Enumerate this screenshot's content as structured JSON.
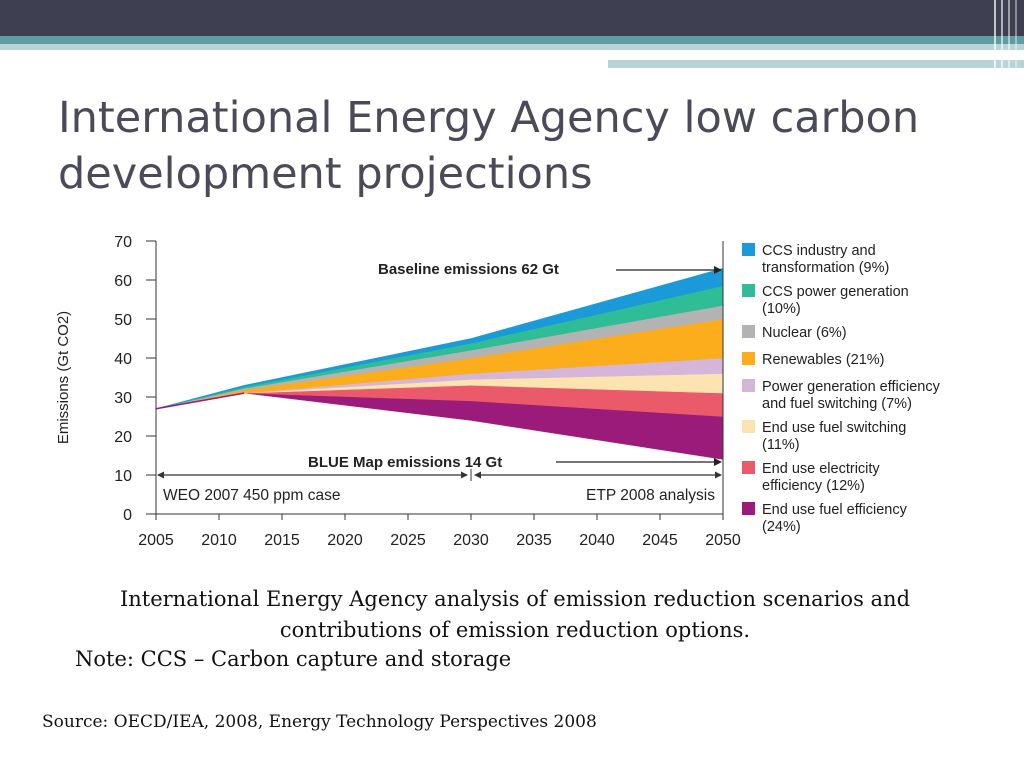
{
  "slide": {
    "title": "International Energy Agency low carbon development projections",
    "caption": "International Energy Agency analysis of emission reduction scenarios and contributions of emission reduction options.",
    "note": "Note: CCS – Carbon capture and storage",
    "source": "Source: OECD/IEA, 2008, Energy Technology Perspectives 2008",
    "colors": {
      "band_dark": "#3e3f51",
      "band_teal": "#5f9ea0",
      "band_light": "#b8d4d6",
      "title": "#4a4a58"
    }
  },
  "chart_data": {
    "type": "area",
    "title": "",
    "xlabel": "",
    "ylabel": "Emissions (Gt CO2)",
    "xlim": [
      2005,
      2050
    ],
    "ylim": [
      0,
      70
    ],
    "x_ticks": [
      2005,
      2010,
      2015,
      2020,
      2025,
      2030,
      2035,
      2040,
      2045,
      2050
    ],
    "y_ticks": [
      0,
      10,
      20,
      30,
      40,
      50,
      60,
      70
    ],
    "x": [
      2005,
      2012,
      2030,
      2050
    ],
    "base": [
      27,
      31,
      24,
      14
    ],
    "series": [
      {
        "name": "End use fuel efficiency (24%)",
        "color": "#9b1b7a",
        "values": [
          0,
          0,
          5,
          11
        ]
      },
      {
        "name": "End use electricity efficiency (12%)",
        "color": "#ea5a6a",
        "values": [
          0,
          0,
          4,
          6
        ]
      },
      {
        "name": "End use fuel switching (11%)",
        "color": "#fde3b0",
        "values": [
          0,
          0,
          1.5,
          5
        ]
      },
      {
        "name": "Power generation efficiency and fuel switching (7%)",
        "color": "#d5b5d9",
        "values": [
          0,
          0,
          1.5,
          4
        ]
      },
      {
        "name": "Renewables (21%)",
        "color": "#fbad1b",
        "values": [
          0,
          0.8,
          4,
          10
        ]
      },
      {
        "name": "Nuclear (6%)",
        "color": "#b3b3b3",
        "values": [
          0,
          0.4,
          2,
          3.5
        ]
      },
      {
        "name": "CCS power generation (10%)",
        "color": "#2ebd96",
        "values": [
          0,
          0.4,
          1.8,
          5
        ]
      },
      {
        "name": "CCS industry and transformation (9%)",
        "color": "#1a9ad8",
        "values": [
          0,
          0.4,
          1.2,
          4.5
        ]
      }
    ],
    "annotations": [
      {
        "text": "Baseline emissions 62 Gt",
        "target": [
          2050,
          62
        ]
      },
      {
        "text": "BLUE Map emissions 14 Gt",
        "target": [
          2050,
          14
        ]
      },
      {
        "text": "WEO 2007 450 ppm case",
        "span": [
          2005,
          2030
        ]
      },
      {
        "text": "ETP 2008 analysis",
        "span": [
          2030,
          2050
        ]
      }
    ],
    "legend": {
      "position": "right",
      "entries": [
        {
          "color": "#1a9ad8",
          "lines": [
            "CCS industry and",
            "transformation (9%)"
          ]
        },
        {
          "color": "#2ebd96",
          "lines": [
            "CCS power generation",
            "(10%)"
          ]
        },
        {
          "color": "#b3b3b3",
          "lines": [
            "Nuclear (6%)"
          ]
        },
        {
          "color": "#fbad1b",
          "lines": [
            "Renewables (21%)"
          ]
        },
        {
          "color": "#d5b5d9",
          "lines": [
            "Power generation efficiency",
            "and fuel switching (7%)"
          ]
        },
        {
          "color": "#fde3b0",
          "lines": [
            "End use fuel switching",
            "(11%)"
          ]
        },
        {
          "color": "#ea5a6a",
          "lines": [
            "End use electricity",
            "efficiency (12%)"
          ]
        },
        {
          "color": "#9b1b7a",
          "lines": [
            "End use fuel efficiency",
            "(24%)"
          ]
        }
      ]
    },
    "grid": false
  }
}
